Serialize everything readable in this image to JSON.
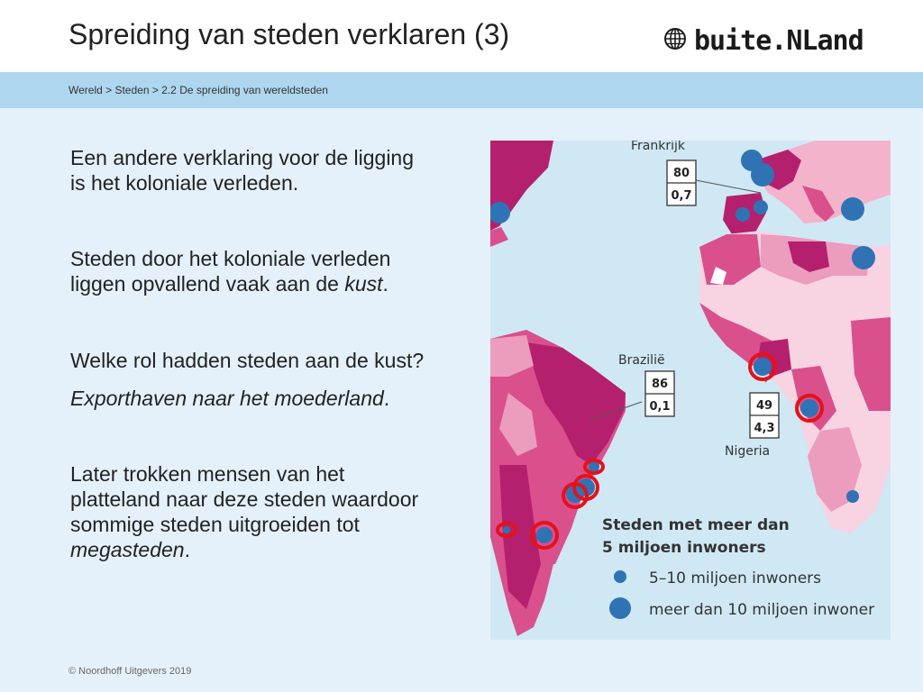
{
  "header": {
    "title": "Spreiding van steden verklaren (3)",
    "logo_text": "buite.NLand",
    "logo_icon": "globe-icon"
  },
  "breadcrumb": "Wereld > Steden > 2.2 De spreiding van wereldsteden",
  "content": {
    "p1_line1": "Een andere verklaring voor de ligging",
    "p1_line2": "is het koloniale verleden.",
    "p2_line1": "Steden door het koloniale verleden",
    "p2_line2_prefix": "liggen opvallend vaak aan de ",
    "p2_line2_italic": "kust",
    "p2_line2_suffix": ".",
    "p3": "Welke rol hadden steden aan de kust?",
    "p4_italic": "Exporthaven naar het moederland",
    "p4_suffix": ".",
    "p5_line1": "Later trokken mensen van het",
    "p5_line2": "platteland naar deze steden waardoor",
    "p5_line3": "sommige steden uitgroeiden tot",
    "p5_line4_italic": "megasteden",
    "p5_line4_suffix": "."
  },
  "map": {
    "label_frankrijk": "Frankrijk",
    "frankrijk_top": "80",
    "frankrijk_bottom": "0,7",
    "label_brazilie": "Brazilië",
    "brazilie_top": "86",
    "brazilie_bottom": "0,1",
    "label_nigeria": "Nigeria",
    "nigeria_top": "49",
    "nigeria_bottom": "4,3",
    "legend_title_line1": "Steden met meer dan",
    "legend_title_line2": "5 miljoen inwoners",
    "legend_small": "5–10 miljoen inwoners",
    "legend_large": "meer dan 10 miljoen inwoner",
    "colors": {
      "ocean": "#cfe8f4",
      "dark_magenta": "#b5206e",
      "mid_pink": "#d9508d",
      "light_pink": "#ec9cbd",
      "pale_pink": "#f8d3e1",
      "city_blue": "#2f73b5",
      "highlight_red": "#e3121b"
    }
  },
  "footer": "© Noordhoff Uitgevers 2019"
}
